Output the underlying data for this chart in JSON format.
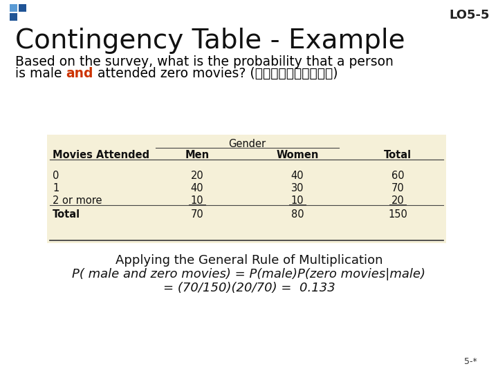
{
  "title": "Contingency Table - Example",
  "lo_label": "LO5-5",
  "subtitle_line1": "Based on the survey, what is the probability that a person",
  "subtitle_line2_parts": [
    {
      "text": "is male ",
      "color": "#000000"
    },
    {
      "text": "and",
      "color": "#cc3300"
    },
    {
      "text": " attended zero movies? (求聯合機率，獨立否？)",
      "color": "#000000"
    }
  ],
  "table_header_group": "Gender",
  "table_col_headers": [
    "Movies Attended",
    "Men",
    "Women",
    "Total"
  ],
  "table_rows": [
    [
      "0",
      "20",
      "40",
      "60"
    ],
    [
      "1",
      "40",
      "30",
      "70"
    ],
    [
      "2 or more",
      "10",
      "10",
      "20"
    ],
    [
      "Total",
      "70",
      "80",
      "150"
    ]
  ],
  "footer_lines": [
    "Applying the General Rule of Multiplication",
    "P( male and zero movies) = P(male)P(zero movies|male)",
    "= (70/150)(20/70) =  0.133"
  ],
  "page_label": "5-*",
  "bg_color": "#ffffff",
  "table_bg_color": "#f5f0d8",
  "title_fontsize": 28,
  "subtitle_fontsize": 13.5,
  "footer_fontsize": 13,
  "lo_fontsize": 13,
  "table_fontsize": 10.5
}
